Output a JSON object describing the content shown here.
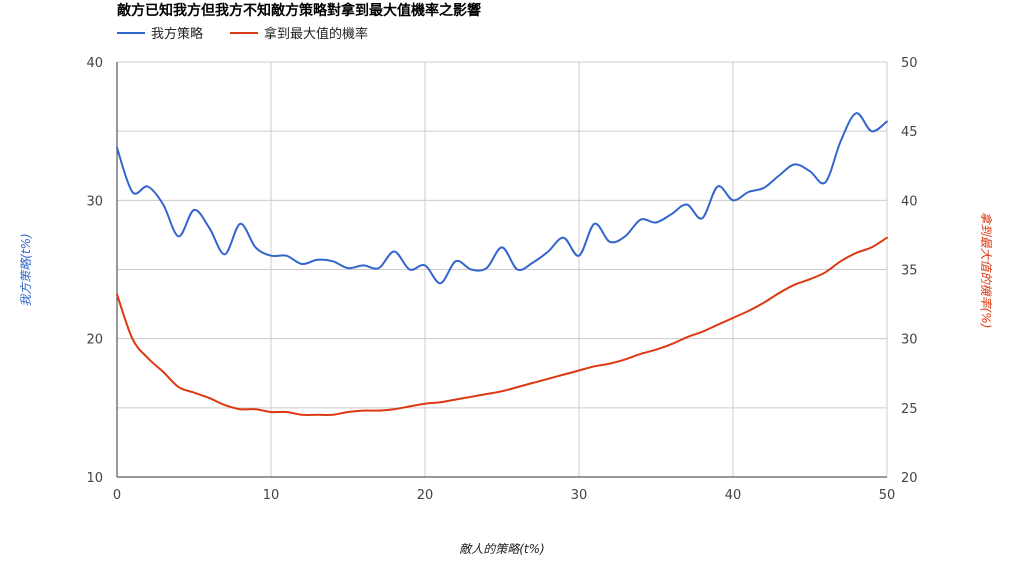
{
  "chart_data": {
    "type": "line",
    "title": "敵方已知我方但我方不知敵方策略對拿到最大值機率之影響",
    "xlabel": "敵人的策略(t%)",
    "ylabel_left": "我方策略(t%)",
    "ylabel_right": "拿到最大值的機率(%)",
    "xlim": [
      0,
      50
    ],
    "ylim_left": [
      10,
      40
    ],
    "ylim_right": [
      20,
      50
    ],
    "x_ticks": [
      "0",
      "10",
      "20",
      "30",
      "40",
      "50"
    ],
    "y_ticks_left": [
      "10",
      "20",
      "30",
      "40"
    ],
    "y_ticks_right": [
      "20",
      "25",
      "30",
      "35",
      "40",
      "45",
      "50"
    ],
    "grid": true,
    "legend_position": "top-left",
    "x": [
      0,
      1,
      2,
      3,
      4,
      5,
      6,
      7,
      8,
      9,
      10,
      11,
      12,
      13,
      14,
      15,
      16,
      17,
      18,
      19,
      20,
      21,
      22,
      23,
      24,
      25,
      26,
      27,
      28,
      29,
      30,
      31,
      32,
      33,
      34,
      35,
      36,
      37,
      38,
      39,
      40,
      41,
      42,
      43,
      44,
      45,
      46,
      47,
      48,
      49,
      50
    ],
    "series": [
      {
        "name": "我方策略",
        "axis": "left",
        "color": "#3366cc",
        "values": [
          33.8,
          30.6,
          31.0,
          29.7,
          27.4,
          29.3,
          28.0,
          26.1,
          28.3,
          26.6,
          26.0,
          26.0,
          25.4,
          25.7,
          25.6,
          25.1,
          25.3,
          25.1,
          26.3,
          25.0,
          25.3,
          24.0,
          25.6,
          25.0,
          25.1,
          26.6,
          25.0,
          25.5,
          26.3,
          27.3,
          26.0,
          28.3,
          27.0,
          27.4,
          28.6,
          28.4,
          29.0,
          29.7,
          28.7,
          31.0,
          30.0,
          30.6,
          30.9,
          31.8,
          32.6,
          32.1,
          31.3,
          34.3,
          36.3,
          35.0,
          35.7
        ]
      },
      {
        "name": "拿到最大值的機率",
        "axis": "right",
        "color": "#dc3912",
        "values": [
          33.2,
          30.0,
          28.6,
          27.6,
          26.5,
          26.1,
          25.7,
          25.2,
          24.9,
          24.9,
          24.7,
          24.7,
          24.5,
          24.5,
          24.5,
          24.7,
          24.8,
          24.8,
          24.9,
          25.1,
          25.3,
          25.4,
          25.6,
          25.8,
          26.0,
          26.2,
          26.5,
          26.8,
          27.1,
          27.4,
          27.7,
          28.0,
          28.2,
          28.5,
          28.9,
          29.2,
          29.6,
          30.1,
          30.5,
          31.0,
          31.5,
          32.0,
          32.6,
          33.3,
          33.9,
          34.3,
          34.8,
          35.6,
          36.2,
          36.6,
          37.3
        ]
      }
    ]
  }
}
